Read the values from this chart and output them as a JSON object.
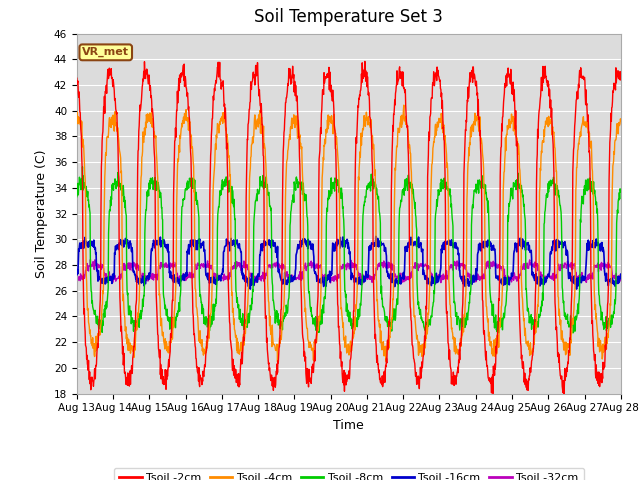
{
  "title": "Soil Temperature Set 3",
  "xlabel": "Time",
  "ylabel": "Soil Temperature (C)",
  "ylim": [
    18,
    46
  ],
  "xlim": [
    0,
    15
  ],
  "xtick_labels": [
    "Aug 13",
    "Aug 14",
    "Aug 15",
    "Aug 16",
    "Aug 17",
    "Aug 18",
    "Aug 19",
    "Aug 20",
    "Aug 21",
    "Aug 22",
    "Aug 23",
    "Aug 24",
    "Aug 25",
    "Aug 26",
    "Aug 27",
    "Aug 28"
  ],
  "legend_labels": [
    "Tsoil -2cm",
    "Tsoil -4cm",
    "Tsoil -8cm",
    "Tsoil -16cm",
    "Tsoil -32cm"
  ],
  "line_colors": [
    "#FF0000",
    "#FF8C00",
    "#00CC00",
    "#0000CC",
    "#BB00BB"
  ],
  "annotation_text": "VR_met",
  "annotation_color": "#8B4513",
  "annotation_bg": "#FFFF99",
  "plot_bg": "#DCDCDC",
  "grid_color": "#C8C8C8",
  "title_fontsize": 12,
  "label_fontsize": 9,
  "tick_fontsize": 7.5
}
